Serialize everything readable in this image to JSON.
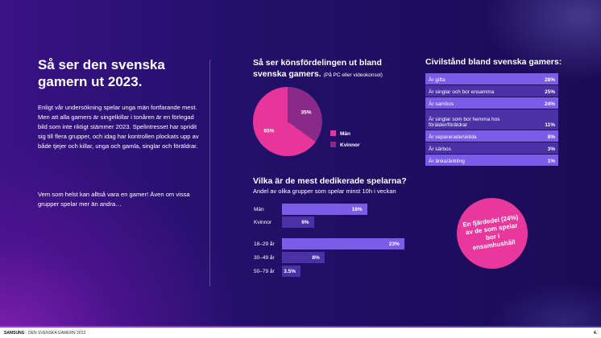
{
  "title": "Så ser den svenska gamern ut 2023.",
  "body1": "Enligt vår undersökning spelar unga män fortfarande mest. Men att alla gamers är singelkillar i tonåren är en förlegad bild som inte riktigt stämmer 2023. Spelintresset har spridit sig till flera grupper, och idag har kontrollen plockats upp av både tjejer och killar, unga och gamla, singlar och föräldrar.",
  "body2": "Vem som helst kan alltså vara en gamer! Även om vissa grupper spelar mer än andra…",
  "pie": {
    "title": "Så ser könsfördelingen ut bland svenska gamers.",
    "note": "(På PC eller videokonsol)",
    "slices": [
      {
        "label": "Män",
        "value": 65,
        "text": "65%",
        "color": "#e8359b"
      },
      {
        "label": "Kvinnor",
        "value": 35,
        "text": "35%",
        "color": "#8a2a88"
      }
    ]
  },
  "civil": {
    "title": "Civilstånd bland svenska gamers:",
    "rows": [
      {
        "label": "Är gifta",
        "value": "28%"
      },
      {
        "label": "Är singlar och bor ensamma",
        "value": "25%"
      },
      {
        "label": "Är sambos",
        "value": "24%"
      },
      {
        "label": "Är singlar som bor hemma hos förälder/föräldrar",
        "value": "11%"
      },
      {
        "label": "Är separerade/skilda",
        "value": "8%"
      },
      {
        "label": "Är särbos",
        "value": "3%"
      },
      {
        "label": "Är änka/änkling",
        "value": "1%"
      }
    ]
  },
  "dedicated": {
    "title": "Vilka är de mest dedikerade spelarna?",
    "subtitle": "Andel av olika grupper som spelar minst 10h i veckan",
    "bars": [
      {
        "label": "Män",
        "value": 16,
        "text": "16%",
        "color": "#7a5ce6"
      },
      {
        "label": "Kvinnor",
        "value": 6,
        "text": "6%",
        "color": "#4b31a6"
      },
      {
        "label": "18–29 år",
        "value": 23,
        "text": "23%",
        "color": "#7a5ce6"
      },
      {
        "label": "30–49 år",
        "value": 8,
        "text": "8%",
        "color": "#4b31a6"
      },
      {
        "label": "50–79 år",
        "value": 3.5,
        "text": "3.5%",
        "color": "#4b31a6"
      }
    ]
  },
  "bubble": "En fjärdedel (24%) av de som spelar bor i ensamhushåll",
  "footer": {
    "brand": "SAMSUNG",
    "doc": "· DEN SVENSKA GAMERN 2023",
    "page": "4."
  }
}
